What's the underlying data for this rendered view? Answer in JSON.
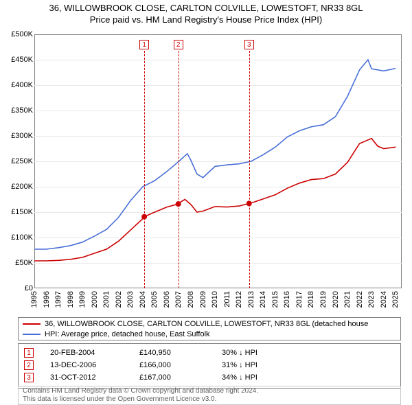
{
  "title": {
    "line1": "36, WILLOWBROOK CLOSE, CARLTON COLVILLE, LOWESTOFT, NR33 8GL",
    "line2": "Price paid vs. HM Land Registry's House Price Index (HPI)"
  },
  "chart": {
    "type": "line",
    "background_color": "#ffffff",
    "border_color": "#808080",
    "grid_color": "#e8e8e8",
    "xlim": [
      1995,
      2025.5
    ],
    "ylim": [
      0,
      500000
    ],
    "yticks": [
      0,
      50000,
      100000,
      150000,
      200000,
      250000,
      300000,
      350000,
      400000,
      450000,
      500000
    ],
    "ytick_labels": [
      "£0",
      "£50K",
      "£100K",
      "£150K",
      "£200K",
      "£250K",
      "£300K",
      "£350K",
      "£400K",
      "£450K",
      "£500K"
    ],
    "xticks": [
      1995,
      1996,
      1997,
      1998,
      1999,
      2000,
      2001,
      2002,
      2003,
      2004,
      2005,
      2006,
      2007,
      2008,
      2009,
      2010,
      2011,
      2012,
      2013,
      2014,
      2015,
      2016,
      2017,
      2018,
      2019,
      2020,
      2021,
      2022,
      2023,
      2024,
      2025
    ],
    "xtick_labels": [
      "1995",
      "1996",
      "1997",
      "1998",
      "1999",
      "2000",
      "2001",
      "2002",
      "2003",
      "2004",
      "2005",
      "2006",
      "2007",
      "2008",
      "2009",
      "2010",
      "2011",
      "2012",
      "2013",
      "2014",
      "2015",
      "2016",
      "2017",
      "2018",
      "2019",
      "2020",
      "2021",
      "2022",
      "2023",
      "2024",
      "2025"
    ],
    "tick_fontsize": 11,
    "series": [
      {
        "name": "36, WILLOWBROOK CLOSE, CARLTON COLVILLE, LOWESTOFT, NR33 8GL (detached house",
        "color": "#cc0000",
        "line_width": 1.6,
        "x": [
          1995,
          1996,
          1997,
          1998,
          1999,
          2000,
          2001,
          2002,
          2003,
          2004,
          2004.13,
          2005,
          2006,
          2006.95,
          2007,
          2007.5,
          2008,
          2008.5,
          2009,
          2010,
          2011,
          2012,
          2012.83,
          2013,
          2014,
          2015,
          2016,
          2017,
          2018,
          2019,
          2020,
          2021,
          2022,
          2023,
          2023.5,
          2024,
          2025
        ],
        "y": [
          54000,
          54000,
          55000,
          57000,
          61000,
          69000,
          77000,
          93000,
          115000,
          137000,
          140950,
          150000,
          160000,
          166000,
          168000,
          175000,
          165000,
          150000,
          152000,
          161000,
          160000,
          162000,
          167000,
          168000,
          176000,
          184000,
          197000,
          207000,
          214000,
          216000,
          225000,
          248000,
          285000,
          295000,
          280000,
          275000,
          278000
        ]
      },
      {
        "name": "HPI: Average price, detached house, East Suffolk",
        "color": "#4a6fd8",
        "line_width": 1.6,
        "x": [
          1995,
          1996,
          1997,
          1998,
          1999,
          2000,
          2001,
          2002,
          2003,
          2004,
          2005,
          2006,
          2007,
          2007.7,
          2008,
          2008.5,
          2009,
          2010,
          2011,
          2012,
          2013,
          2014,
          2015,
          2016,
          2017,
          2018,
          2019,
          2020,
          2021,
          2022,
          2022.7,
          2023,
          2024,
          2025
        ],
        "y": [
          77000,
          77000,
          80000,
          84000,
          91000,
          103000,
          116000,
          140000,
          173000,
          200000,
          212000,
          230000,
          250000,
          265000,
          252000,
          225000,
          218000,
          240000,
          243000,
          245000,
          250000,
          263000,
          278000,
          298000,
          310000,
          318000,
          322000,
          338000,
          378000,
          430000,
          450000,
          432000,
          428000,
          433000
        ]
      }
    ],
    "markers": [
      {
        "n": "1",
        "x": 2004.13,
        "y": 140950
      },
      {
        "n": "2",
        "x": 2006.95,
        "y": 166000
      },
      {
        "n": "3",
        "x": 2012.83,
        "y": 167000
      }
    ],
    "marker_dot_color": "#cc0000",
    "marker_dot_radius": 4
  },
  "legend": {
    "items": [
      {
        "color": "#cc0000",
        "label": "36, WILLOWBROOK CLOSE, CARLTON COLVILLE, LOWESTOFT, NR33 8GL (detached house"
      },
      {
        "color": "#4a6fd8",
        "label": "HPI: Average price, detached house, East Suffolk"
      }
    ]
  },
  "events": [
    {
      "n": "1",
      "date": "20-FEB-2004",
      "price": "£140,950",
      "delta": "30% ↓ HPI"
    },
    {
      "n": "2",
      "date": "13-DEC-2006",
      "price": "£166,000",
      "delta": "31% ↓ HPI"
    },
    {
      "n": "3",
      "date": "31-OCT-2012",
      "price": "£167,000",
      "delta": "34% ↓ HPI"
    }
  ],
  "footer": {
    "line1": "Contains HM Land Registry data © Crown copyright and database right 2024.",
    "line2": "This data is licensed under the Open Government Licence v3.0."
  }
}
